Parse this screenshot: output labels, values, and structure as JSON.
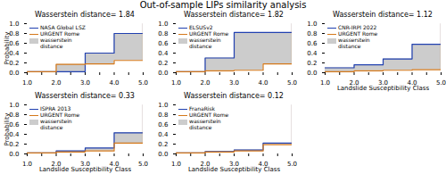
{
  "title": "Out-of-sample LIPs similarity analysis",
  "chart_data": [
    {
      "type": "step",
      "title": "Wasserstein distance= 1.84",
      "ylabel": "Probability",
      "x": [
        1.0,
        2.0,
        3.0,
        4.0,
        5.0
      ],
      "series": [
        {
          "name": "NASA Global LSZ",
          "color": "#2040b0",
          "values": [
            0.02,
            0.02,
            0.4,
            0.8,
            1.0
          ]
        },
        {
          "name": "URGENT Rome",
          "color": "#d4781a",
          "values": [
            0.02,
            0.17,
            0.18,
            0.25,
            1.0
          ]
        }
      ],
      "area": {
        "name": "wasserstein\ndistance",
        "color": "#cccccc"
      },
      "legend": "upper left",
      "xlim": [
        1.0,
        5.0
      ],
      "ylim": [
        0.0,
        1.0
      ],
      "xticks": [
        {
          "value": 1.0,
          "label": "1.0"
        },
        {
          "value": 1.5,
          "label": ""
        },
        {
          "value": 2.0,
          "label": "2.0"
        },
        {
          "value": 2.5,
          "label": ""
        },
        {
          "value": 3.0,
          "label": "3.0"
        },
        {
          "value": 3.5,
          "label": ""
        },
        {
          "value": 4.0,
          "label": "4.0"
        },
        {
          "value": 4.5,
          "label": ""
        },
        {
          "value": 5.0,
          "label": "5.0"
        }
      ],
      "yticks": [
        {
          "value": 0.0,
          "label": "0.0"
        },
        0.2,
        0.4,
        0.6,
        0.8,
        {
          "value": 1.0,
          "label": "1.0"
        }
      ]
    },
    {
      "type": "step",
      "title": "Wasserstein distance= 1.82",
      "x": [
        1.0,
        2.0,
        3.0,
        4.0,
        5.0
      ],
      "series": [
        {
          "name": "ELSUSv2",
          "color": "#2040b0",
          "values": [
            0.02,
            0.3,
            0.82,
            0.82,
            1.0
          ]
        },
        {
          "name": "URGENT Rome",
          "color": "#d4781a",
          "values": [
            0.02,
            0.04,
            0.05,
            0.18,
            1.0
          ]
        }
      ],
      "area": {
        "name": "wasserstein\ndistance",
        "color": "#cccccc"
      },
      "legend": "upper left",
      "xlim": [
        1.0,
        5.0
      ],
      "ylim": [
        0.0,
        1.0
      ],
      "xticks": [
        {
          "value": 1.0,
          "label": "1.0"
        },
        {
          "value": 1.5,
          "label": ""
        },
        {
          "value": 2.0,
          "label": "2.0"
        },
        {
          "value": 2.5,
          "label": ""
        },
        {
          "value": 3.0,
          "label": "3.0"
        },
        {
          "value": 3.5,
          "label": ""
        },
        {
          "value": 4.0,
          "label": "4.0"
        },
        {
          "value": 4.5,
          "label": ""
        },
        {
          "value": 5.0,
          "label": "5.0"
        }
      ],
      "yticks": [
        {
          "value": 0.0,
          "label": "0.0"
        },
        0.2,
        0.4,
        0.6,
        0.8,
        {
          "value": 1.0,
          "label": "1.0"
        }
      ]
    },
    {
      "type": "step",
      "title": "Wasserstein distance= 1.12",
      "xlabel": "Landslide Susceptibility Class",
      "x": [
        1.0,
        2.0,
        3.0,
        4.0,
        5.0
      ],
      "series": [
        {
          "name": "CNR-IRPI 2022",
          "color": "#2040b0",
          "values": [
            0.1,
            0.16,
            0.28,
            0.58,
            1.0
          ]
        },
        {
          "name": "URGENT Rome",
          "color": "#d4781a",
          "values": [
            0.02,
            0.04,
            0.05,
            0.06,
            1.0
          ]
        }
      ],
      "area": {
        "name": "wasserstein\ndistance",
        "color": "#cccccc"
      },
      "legend": "upper left",
      "xlim": [
        1.0,
        5.0
      ],
      "ylim": [
        0.0,
        1.0
      ],
      "xticks": [
        {
          "value": 1.0,
          "label": "1.0"
        },
        {
          "value": 1.5,
          "label": ""
        },
        {
          "value": 2.0,
          "label": "2.0"
        },
        {
          "value": 2.5,
          "label": ""
        },
        {
          "value": 3.0,
          "label": "3.0"
        },
        {
          "value": 3.5,
          "label": ""
        },
        {
          "value": 4.0,
          "label": "4.0"
        },
        {
          "value": 4.5,
          "label": ""
        },
        {
          "value": 5.0,
          "label": "5.0"
        }
      ],
      "yticks": [
        {
          "value": 0.0,
          "label": "0.0"
        },
        0.2,
        0.4,
        0.6,
        0.8,
        {
          "value": 1.0,
          "label": "1.0"
        }
      ]
    },
    {
      "type": "step",
      "title": "Wasserstein distance= 0.33",
      "xlabel": "Landslide Susceptibility Class",
      "ylabel": "Probability",
      "x": [
        1.0,
        2.0,
        3.0,
        4.0,
        5.0
      ],
      "series": [
        {
          "name": "ISPRA 2013",
          "color": "#2040b0",
          "values": [
            0.02,
            0.06,
            0.12,
            0.43,
            1.0
          ]
        },
        {
          "name": "URGENT Rome",
          "color": "#d4781a",
          "values": [
            0.02,
            0.04,
            0.06,
            0.22,
            1.0
          ]
        }
      ],
      "area": {
        "name": "wasserstein\ndistance",
        "color": "#cccccc"
      },
      "legend": "upper left",
      "xlim": [
        1.0,
        5.0
      ],
      "ylim": [
        0.0,
        1.0
      ],
      "xticks": [
        {
          "value": 1.0,
          "label": "1.0"
        },
        {
          "value": 1.5,
          "label": ""
        },
        {
          "value": 2.0,
          "label": "2.0"
        },
        {
          "value": 2.5,
          "label": ""
        },
        {
          "value": 3.0,
          "label": "3.0"
        },
        {
          "value": 3.5,
          "label": ""
        },
        {
          "value": 4.0,
          "label": "4.0"
        },
        {
          "value": 4.5,
          "label": ""
        },
        {
          "value": 5.0,
          "label": "5.0"
        }
      ],
      "yticks": [
        {
          "value": 0.0,
          "label": "0.0"
        },
        0.2,
        0.4,
        0.6,
        0.8,
        {
          "value": 1.0,
          "label": "1.0"
        }
      ]
    },
    {
      "type": "step",
      "title": "Wasserstein distance= 0.12",
      "xlabel": "Landslide Susceptibility Class",
      "x": [
        1.0,
        2.0,
        3.0,
        4.0,
        5.0
      ],
      "series": [
        {
          "name": "FranaRisk",
          "color": "#2040b0",
          "values": [
            0.02,
            0.05,
            0.08,
            0.22,
            1.0
          ]
        },
        {
          "name": "URGENT Rome",
          "color": "#d4781a",
          "values": [
            0.02,
            0.04,
            0.06,
            0.19,
            1.0
          ]
        }
      ],
      "area": {
        "name": "wasserstein\ndistance",
        "color": "#cccccc"
      },
      "legend": "upper left",
      "xlim": [
        1.0,
        5.0
      ],
      "ylim": [
        0.0,
        1.0
      ],
      "xticks": [
        {
          "value": 1.0,
          "label": "1.0"
        },
        {
          "value": 1.5,
          "label": ""
        },
        {
          "value": 2.0,
          "label": "2.0"
        },
        {
          "value": 2.5,
          "label": ""
        },
        {
          "value": 3.0,
          "label": "3.0"
        },
        {
          "value": 3.5,
          "label": ""
        },
        {
          "value": 4.0,
          "label": "4.0"
        },
        {
          "value": 4.5,
          "label": ""
        },
        {
          "value": 5.0,
          "label": "5.0"
        }
      ],
      "yticks": [
        {
          "value": 0.0,
          "label": "0.0"
        },
        0.2,
        0.4,
        0.6,
        0.8,
        {
          "value": 1.0,
          "label": "1.0"
        }
      ]
    }
  ]
}
